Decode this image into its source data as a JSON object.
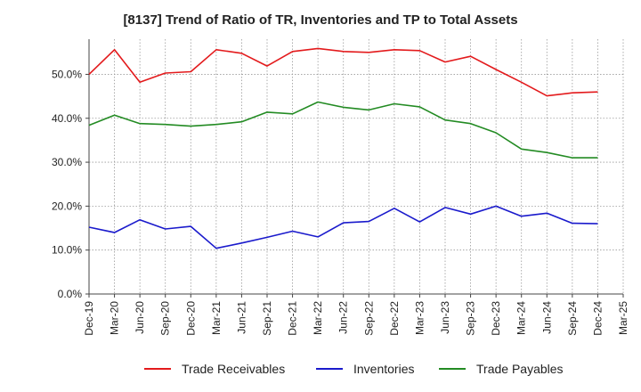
{
  "chart_data": {
    "type": "line",
    "title": "[8137]  Trend of Ratio of TR, Inventories and TP to Total Assets",
    "xlabel": "",
    "ylabel": "",
    "x_ticks": [
      "Dec-19",
      "Mar-20",
      "Jun-20",
      "Sep-20",
      "Dec-20",
      "Mar-21",
      "Jun-21",
      "Sep-21",
      "Dec-21",
      "Mar-22",
      "Jun-22",
      "Sep-22",
      "Dec-22",
      "Mar-23",
      "Jun-23",
      "Sep-23",
      "Dec-23",
      "Mar-24",
      "Jun-24",
      "Sep-24",
      "Dec-24",
      "Mar-25"
    ],
    "categories": [
      "Dec-19",
      "Mar-20",
      "Jun-20",
      "Sep-20",
      "Dec-20",
      "Mar-21",
      "Jun-21",
      "Sep-21",
      "Dec-21",
      "Mar-22",
      "Jun-22",
      "Sep-22",
      "Dec-22",
      "Mar-23",
      "Jun-23",
      "Sep-23",
      "Dec-23",
      "Mar-24",
      "Jun-24",
      "Sep-24",
      "Dec-24"
    ],
    "y_ticks": [
      "0.0%",
      "10.0%",
      "20.0%",
      "30.0%",
      "40.0%",
      "50.0%"
    ],
    "y_tick_values": [
      0,
      10,
      20,
      30,
      40,
      50
    ],
    "ylim": [
      0,
      58
    ],
    "grid": true,
    "legend_position": "bottom",
    "series": [
      {
        "name": "Trade Receivables",
        "color": "#e31a1c",
        "values": [
          50.0,
          55.6,
          48.2,
          50.3,
          50.6,
          55.6,
          54.8,
          51.9,
          55.2,
          55.9,
          55.2,
          55.0,
          55.6,
          55.4,
          52.8,
          54.1,
          51.1,
          48.2,
          45.1,
          45.8,
          46.0
        ]
      },
      {
        "name": "Inventories",
        "color": "#1a1acc",
        "values": [
          15.2,
          14.0,
          16.9,
          14.8,
          15.4,
          10.4,
          11.6,
          12.9,
          14.3,
          13.0,
          16.2,
          16.5,
          19.5,
          16.4,
          19.7,
          18.2,
          20.0,
          17.7,
          18.4,
          16.1,
          16.0
        ]
      },
      {
        "name": "Trade Payables",
        "color": "#238b23",
        "values": [
          38.4,
          40.7,
          38.8,
          38.6,
          38.2,
          38.6,
          39.2,
          41.4,
          41.0,
          43.7,
          42.5,
          41.9,
          43.3,
          42.6,
          39.6,
          38.8,
          36.7,
          33.0,
          32.2,
          31.0,
          31.0
        ]
      }
    ]
  }
}
